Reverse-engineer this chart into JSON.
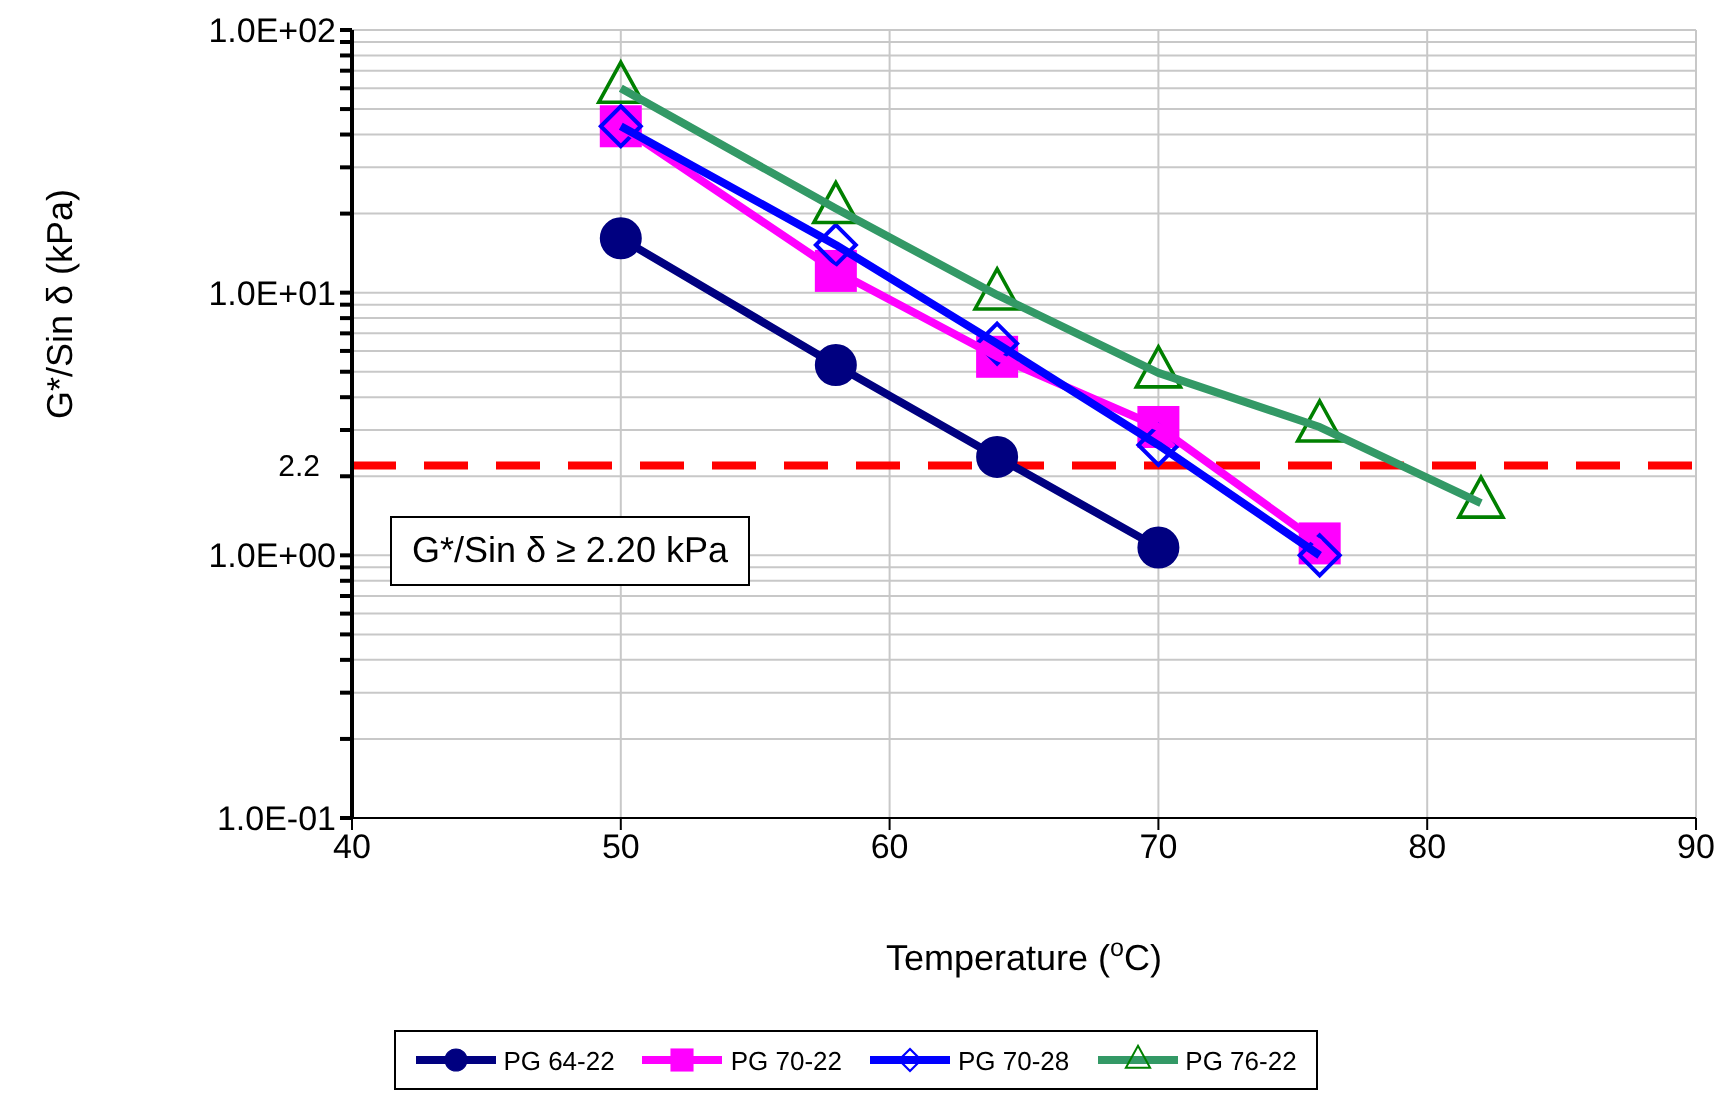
{
  "chart_data": {
    "type": "line",
    "xlabel": "Temperature ($^{o}$C)",
    "ylabel": "G*/Sin δ (kPa)",
    "x": [
      50,
      58,
      64,
      70,
      76,
      82
    ],
    "series": [
      {
        "name": "PG 64-22",
        "color": "#000080",
        "marker": "circle",
        "values": [
          16.1,
          5.3,
          2.37,
          1.07,
          null,
          null
        ]
      },
      {
        "name": "PG 70-22",
        "color": "#ff00ff",
        "marker": "square",
        "values": [
          43,
          12.1,
          5.7,
          3.08,
          1.11,
          null
        ]
      },
      {
        "name": "PG 70-28",
        "color": "#0000ff",
        "marker": "diamond",
        "values": [
          43,
          15.2,
          6.4,
          2.63,
          1.0,
          null
        ]
      },
      {
        "name": "PG 76-22",
        "color": "#339966",
        "marker": "triangle",
        "values": [
          60,
          20.9,
          9.8,
          4.95,
          3.08,
          1.58
        ]
      }
    ],
    "log": "y",
    "xlim": [
      40,
      90
    ],
    "xticks": [
      40,
      50,
      60,
      70,
      80,
      90
    ],
    "ylim": [
      0.1,
      100
    ],
    "yticks": [
      {
        "value": 0.1,
        "label": "1.0E-01"
      },
      {
        "value": 0.2,
        "label": null
      },
      {
        "value": 0.3,
        "label": null
      },
      {
        "value": 0.4,
        "label": null
      },
      {
        "value": 0.5,
        "label": null
      },
      {
        "value": 0.6,
        "label": null
      },
      {
        "value": 0.7,
        "label": null
      },
      {
        "value": 0.8,
        "label": null
      },
      {
        "value": 0.9,
        "label": null
      },
      {
        "value": 1,
        "label": "1.0E+00"
      },
      {
        "value": 2,
        "label": null
      },
      {
        "value": 3,
        "label": null
      },
      {
        "value": 4,
        "label": null
      },
      {
        "value": 5,
        "label": null
      },
      {
        "value": 6,
        "label": null
      },
      {
        "value": 7,
        "label": null
      },
      {
        "value": 8,
        "label": null
      },
      {
        "value": 9,
        "label": null
      },
      {
        "value": 10,
        "label": "1.0E+01"
      },
      {
        "value": 20,
        "label": null
      },
      {
        "value": 30,
        "label": null
      },
      {
        "value": 40,
        "label": null
      },
      {
        "value": 50,
        "label": null
      },
      {
        "value": 60,
        "label": null
      },
      {
        "value": 70,
        "label": null
      },
      {
        "value": 80,
        "label": null
      },
      {
        "value": 90,
        "label": null
      },
      {
        "value": 100,
        "label": "1.0E+02"
      }
    ],
    "ref_lines": [
      {
        "axis": "y",
        "value": 2.2,
        "label": "2.2",
        "color": "#ff0000",
        "line_style": "dashed"
      }
    ],
    "annotations": [
      "G*/Sin δ ≥ 2.20 kPa"
    ],
    "grid": true,
    "legend": "bottom",
    "line_style": "solid"
  }
}
